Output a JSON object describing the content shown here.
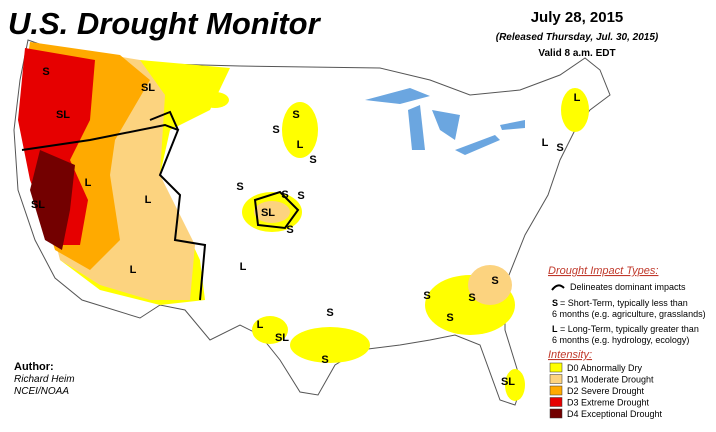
{
  "header": {
    "title": "U.S. Drought Monitor",
    "date": "July 28, 2015",
    "released": "(Released Thursday, Jul. 30, 2015)",
    "valid": "Valid 8 a.m. EDT"
  },
  "legend": {
    "impact_title": "Drought Impact Types:",
    "delineates": "Delineates dominant impacts",
    "s_key": "S",
    "s_line1": "= Short-Term, typically less than",
    "s_line2": "6 months (e.g. agriculture, grasslands)",
    "l_key": "L",
    "l_line1": "= Long-Term, typically greater than",
    "l_line2": "6 months (e.g. hydrology, ecology)",
    "intensity_title": "Intensity:",
    "levels": [
      {
        "label": "D0 Abnormally Dry",
        "color": "#ffff00"
      },
      {
        "label": "D1 Moderate Drought",
        "color": "#fcd37f"
      },
      {
        "label": "D2 Severe Drought",
        "color": "#ffaa00"
      },
      {
        "label": "D3 Extreme Drought",
        "color": "#e60000"
      },
      {
        "label": "D4 Exceptional Drought",
        "color": "#730000"
      }
    ]
  },
  "author": {
    "label": "Author:",
    "name": "Richard Heim",
    "org": "NCEI/NOAA"
  },
  "map_labels": [
    "S",
    "SL",
    "SL",
    "L",
    "SL",
    "L",
    "L",
    "L",
    "S",
    "S",
    "L",
    "S",
    "S",
    "S",
    "S",
    "SL",
    "S",
    "S",
    "L",
    "SL",
    "S",
    "S",
    "S",
    "S",
    "S",
    "L",
    "S",
    "L",
    "SL"
  ]
}
